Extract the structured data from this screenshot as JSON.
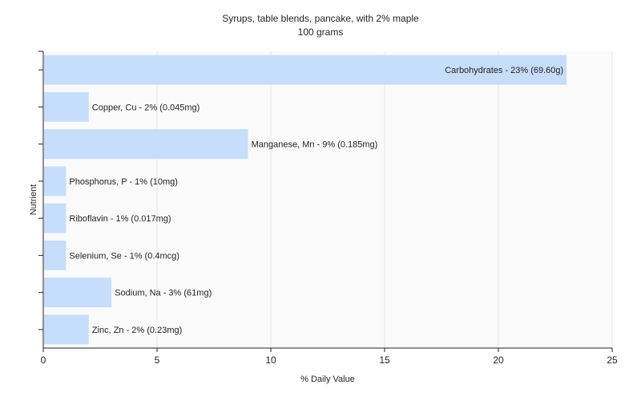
{
  "chart_data": {
    "type": "bar",
    "orientation": "horizontal",
    "title": "Syrups, table blends, pancake, with 2% maple",
    "subtitle": "100 grams",
    "xlabel": "% Daily Value",
    "ylabel": "Nutrient",
    "xlim": [
      0,
      25
    ],
    "xticks": [
      "0",
      "5",
      "10",
      "15",
      "20",
      "25"
    ],
    "grid": true,
    "legend": "none",
    "bar_color": "#c6defc",
    "categories": [
      "Carbohydrates",
      "Copper, Cu",
      "Manganese, Mn",
      "Phosphorus, P",
      "Riboflavin",
      "Selenium, Se",
      "Sodium, Na",
      "Zinc, Zn"
    ],
    "values": [
      23,
      2,
      9,
      1,
      1,
      1,
      3,
      2
    ],
    "labels": [
      "Carbohydrates - 23% (69.60g)",
      "Copper, Cu - 2% (0.045mg)",
      "Manganese, Mn - 9% (0.185mg)",
      "Phosphorus, P - 1% (10mg)",
      "Riboflavin - 1% (0.017mg)",
      "Selenium, Se - 1% (0.4mcg)",
      "Sodium, Na - 3% (61mg)",
      "Zinc, Zn - 2% (0.23mg)"
    ]
  }
}
